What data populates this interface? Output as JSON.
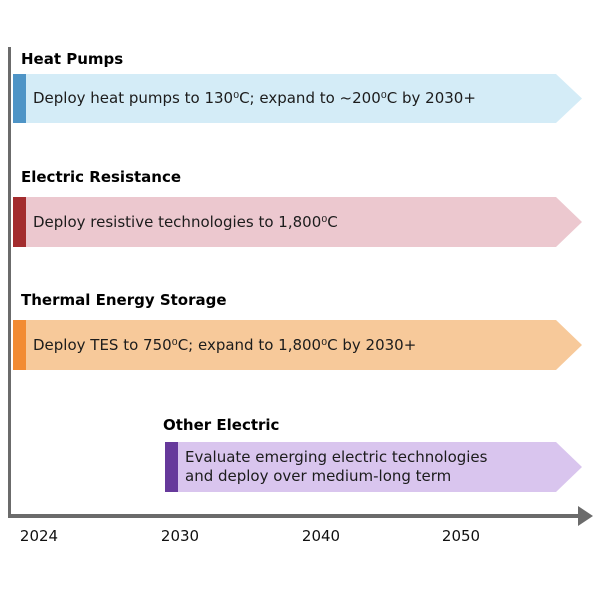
{
  "axis": {
    "color": "#6b6b6b",
    "years": [
      "2024",
      "2030",
      "2040",
      "2050"
    ]
  },
  "rows": [
    {
      "title": "Heat Pumps",
      "text": "Deploy heat pumps to 130⁰C; expand to ~200⁰C by 2030+",
      "accent": "#4e94c6",
      "fill": "#d4ecf7"
    },
    {
      "title": "Electric Resistance",
      "text": "Deploy resistive technologies to 1,800⁰C",
      "accent": "#a32c2e",
      "fill": "#ecc8cf"
    },
    {
      "title": "Thermal Energy Storage",
      "text": "Deploy TES to 750⁰C; expand to 1,800⁰C by 2030+",
      "accent": "#f28b33",
      "fill": "#f7c99a"
    },
    {
      "title": "Other Electric",
      "text": "Evaluate emerging electric technologies\nand deploy over medium-long term",
      "accent": "#66399b",
      "fill": "#d9c5ee"
    }
  ]
}
